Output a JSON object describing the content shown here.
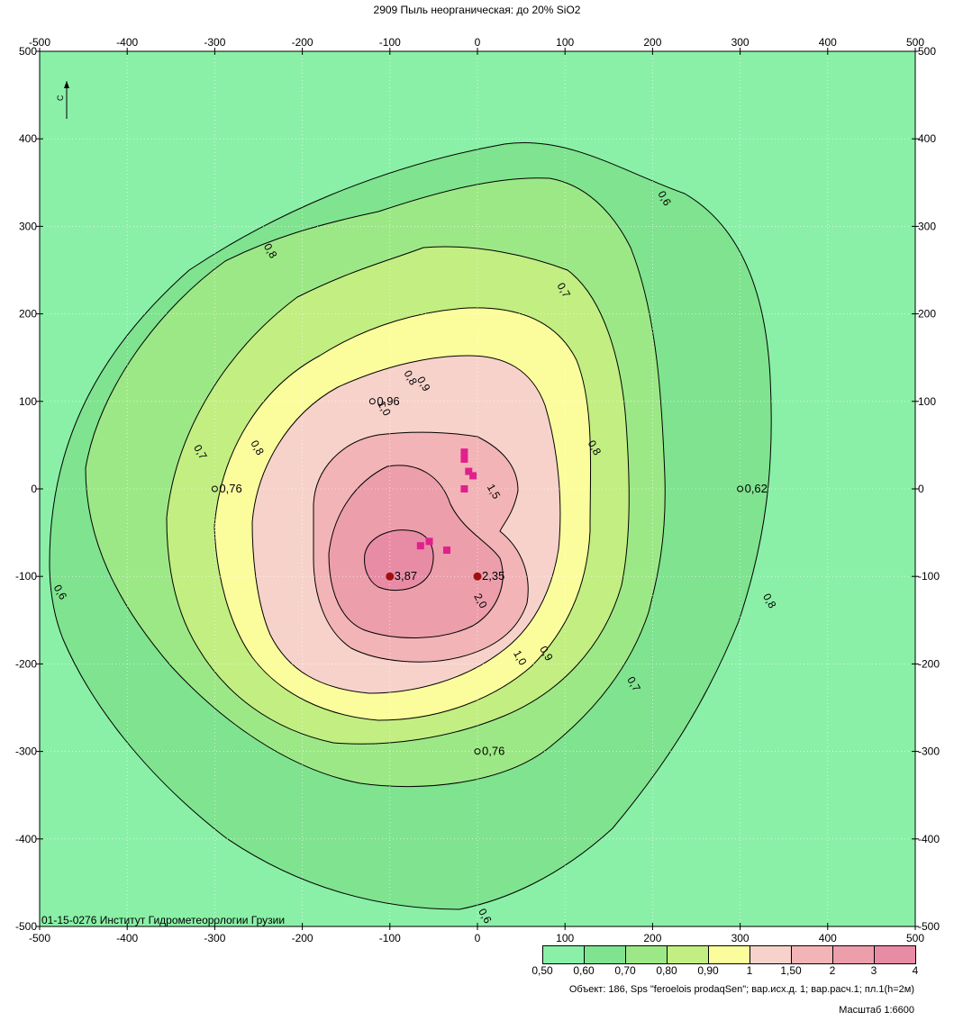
{
  "title": "2909 Пыль неорганическая: до 20% SiO2",
  "chart_data": {
    "type": "contour",
    "x_ticks": [
      "-500",
      "-400",
      "-300",
      "-200",
      "-100",
      "0",
      "100",
      "200",
      "300",
      "400",
      "500"
    ],
    "y_ticks": [
      "500",
      "400",
      "300",
      "200",
      "100",
      "0",
      "-100",
      "-200",
      "-300",
      "-400",
      "-500"
    ],
    "xlim": [
      -500,
      500
    ],
    "ylim": [
      -500,
      500
    ],
    "grid": true,
    "contour_levels": [
      0.5,
      0.6,
      0.7,
      0.8,
      0.9,
      1.0,
      1.5,
      2.0,
      3.0,
      4.0
    ],
    "contour_labels": [
      {
        "text": "0,6",
        "x": 210,
        "y": 330
      },
      {
        "text": "0,8",
        "x": -240,
        "y": 270
      },
      {
        "text": "0,7",
        "x": 95,
        "y": 225
      },
      {
        "text": "0,8",
        "x": -80,
        "y": 125
      },
      {
        "text": "0,9",
        "x": -65,
        "y": 118
      },
      {
        "text": "1,0",
        "x": -110,
        "y": 90
      },
      {
        "text": "0,7",
        "x": -320,
        "y": 40
      },
      {
        "text": "0,8",
        "x": -255,
        "y": 45
      },
      {
        "text": "0,8",
        "x": 130,
        "y": 45
      },
      {
        "text": "1,5",
        "x": 15,
        "y": -5
      },
      {
        "text": "2,0",
        "x": 0,
        "y": -130
      },
      {
        "text": "1,0",
        "x": 45,
        "y": -195
      },
      {
        "text": "0,9",
        "x": 75,
        "y": -190
      },
      {
        "text": "0,7",
        "x": 175,
        "y": -225
      },
      {
        "text": "0,8",
        "x": 330,
        "y": -130
      },
      {
        "text": "0,6",
        "x": -480,
        "y": -120
      },
      {
        "text": "0,6",
        "x": 5,
        "y": -490
      }
    ],
    "points": [
      {
        "label": "3,87",
        "x": -100,
        "y": -100
      },
      {
        "label": "2,35",
        "x": 0,
        "y": -100
      },
      {
        "label": "0,76",
        "x": -300,
        "y": 0
      },
      {
        "label": "0,62",
        "x": 300,
        "y": 0
      },
      {
        "label": "0,76",
        "x": 0,
        "y": -300
      },
      {
        "label": "0,96",
        "x": -120,
        "y": 100
      }
    ],
    "sources": [
      {
        "x": -15,
        "y": 42
      },
      {
        "x": -15,
        "y": 34
      },
      {
        "x": -10,
        "y": 20
      },
      {
        "x": -5,
        "y": 15
      },
      {
        "x": -15,
        "y": 0
      },
      {
        "x": -65,
        "y": -65
      },
      {
        "x": -55,
        "y": -60
      },
      {
        "x": -35,
        "y": -70
      }
    ],
    "north_marker": "С"
  },
  "footer_left": "01-15-0276 Институт Гидрометеорологии Грузии",
  "legend": {
    "colors": [
      "#8af0a7",
      "#7fe38f",
      "#9de886",
      "#c2ee82",
      "#fbfd9d",
      "#f7d2cb",
      "#f2b4b6",
      "#ec9eab",
      "#e88ca6"
    ],
    "labels": [
      "0,50",
      "0,60",
      "0,70",
      "0,80",
      "0,90",
      "1",
      "1,50",
      "2",
      "3",
      "4"
    ]
  },
  "object_info": "Объект: 186, Sps \"feroelois prodaqSen\"; вар.исх.д. 1; вар.расч.1; пл.1(h=2м)",
  "scale": "Масштаб 1:6600",
  "colors": {
    "background": "#8af0a7",
    "band_06": "#7fe38f",
    "band_07": "#9de886",
    "band_08": "#c2ee82",
    "band_09": "#fbfd9d",
    "band_10": "#f7d2cb",
    "band_15": "#f2b4b6",
    "band_20": "#ec9eab",
    "band_30": "#e88ca6",
    "source": "#e0208c",
    "point": "#a01010"
  }
}
